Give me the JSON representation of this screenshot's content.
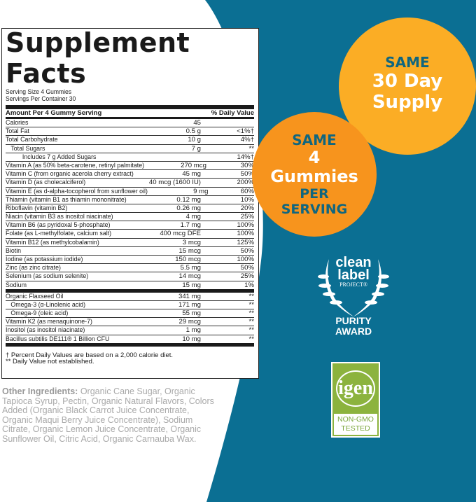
{
  "facts": {
    "title": "Supplement Facts",
    "serving_size": "Serving Size 4 Gummies",
    "servings_per_container": "Servings Per Container 30",
    "col_amount": "Amount Per 4 Gummy Serving",
    "col_dv": "% Daily Value",
    "rows": [
      {
        "name": "Calories",
        "amount": "45",
        "dv": ""
      },
      {
        "name": "Total Fat",
        "amount": "0.5 g",
        "dv": "<1%†"
      },
      {
        "name": "Total Carbohydrate",
        "amount": "10 g",
        "dv": "4%†"
      },
      {
        "name": "Total Sugars",
        "amount": "7 g",
        "dv": "**"
      },
      {
        "name": "Includes 7 g Added Sugars",
        "amount": "",
        "dv": "14%†"
      },
      {
        "name": "Vitamin A (as 50% beta-carotene, retinyl palmitate)",
        "amount": "270 mcg",
        "dv": "30%"
      },
      {
        "name": "Vitamin C (from organic acerola cherry extract)",
        "amount": "45 mg",
        "dv": "50%"
      },
      {
        "name": "Vitamin D (as cholecalciferol)",
        "amount": "40 mcg (1600 IU)",
        "dv": "200%"
      },
      {
        "name": "Vitamin E (as d-alpha-tocopherol from sunflower oil)",
        "amount": "9 mg",
        "dv": "60%"
      },
      {
        "name": "Thiamin (vitamin B1 as thiamin mononitrate)",
        "amount": "0.12 mg",
        "dv": "10%"
      },
      {
        "name": "Riboflavin (vitamin B2)",
        "amount": "0.26 mg",
        "dv": "20%"
      },
      {
        "name": "Niacin (vitamin B3 as inositol niacinate)",
        "amount": "4 mg",
        "dv": "25%"
      },
      {
        "name": "Vitamin B6 (as pyridoxal 5-phosphate)",
        "amount": "1.7 mg",
        "dv": "100%"
      },
      {
        "name": "Folate (as L-methylfolate, calcium salt)",
        "amount": "400 mcg DFE",
        "dv": "100%"
      },
      {
        "name": "Vitamin B12 (as methylcobalamin)",
        "amount": "3 mcg",
        "dv": "125%"
      },
      {
        "name": "Biotin",
        "amount": "15 mcg",
        "dv": "50%"
      },
      {
        "name": "Iodine (as potassium iodide)",
        "amount": "150 mcg",
        "dv": "100%"
      },
      {
        "name": "Zinc (as zinc citrate)",
        "amount": "5.5 mg",
        "dv": "50%"
      },
      {
        "name": "Selenium (as sodium selenite)",
        "amount": "14 mcg",
        "dv": "25%"
      },
      {
        "name": "Sodium",
        "amount": "15 mg",
        "dv": "1%"
      },
      {
        "name": "Organic Flaxseed Oil",
        "amount": "341 mg",
        "dv": "**"
      },
      {
        "name": "Omega-3 (α-Linolenic acid)",
        "amount": "171 mg",
        "dv": "**"
      },
      {
        "name": "Omega-9 (oleic acid)",
        "amount": "55 mg",
        "dv": "**"
      },
      {
        "name": "Vitamin K2 (as menaquinone-7)",
        "amount": "29 mcg",
        "dv": "**"
      },
      {
        "name": "Inositol (as inositol niacinate)",
        "amount": "1 mg",
        "dv": "**"
      },
      {
        "name": "Bacillus subtilis DE111® 1 Billion CFU",
        "amount": "10 mg",
        "dv": "**"
      }
    ],
    "footnote1": "† Percent Daily Values are based on a 2,000 calorie diet.",
    "footnote2": "** Daily Value not established."
  },
  "other": {
    "label": "Other Ingredients:",
    "text": " Organic Cane Sugar, Organic Tapioca Syrup, Pectin, Organic Natural Flavors, Colors Added (Organic Black Carrot Juice Concentrate, Organic Maqui Berry Juice Concentrate), Sodium Citrate, Organic Lemon Juice Concentrate, Organic Sunflower Oil, Citric Acid, Organic Carnauba Wax."
  },
  "badges": {
    "supply": [
      "SAME",
      "30 Day",
      "Supply"
    ],
    "gummies": [
      "SAME",
      "4",
      "Gummies",
      "PER",
      "SERVING"
    ],
    "clean_label": [
      "clean",
      "label",
      "PROJECT®"
    ],
    "purity": [
      "PURITY",
      "AWARD"
    ],
    "igen": "igen",
    "non_gmo": [
      "NON-GMO",
      "TESTED"
    ]
  },
  "colors": {
    "background": "#0b6f93",
    "yellow": "#fbad25",
    "orange": "#f7941d",
    "green": "#8cb33e"
  }
}
